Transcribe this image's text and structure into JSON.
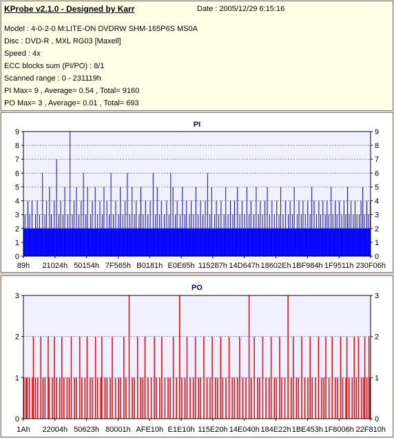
{
  "header": {
    "title": "KProbe v2.1.0 - Designed by Karr",
    "date": "Date : 2005/12/29 6:15:16",
    "lines": [
      "Model : 4-0-2-0 M:LITE-ON DVDRW SHM-165P6S MS0A",
      "Disc : DVD-R , MXL RG03 [Maxell]",
      "Speed : 4x",
      "ECC blocks sum (PI/PO) : 8/1",
      "Scanned range : 0 - 231119h",
      "PI Max= 9 , Average= 0.54 , Total= 9160",
      "PO Max= 3 , Average= 0.01 , Total= 693"
    ]
  },
  "colors": {
    "pi": "#0000ff",
    "po": "#ff0000",
    "plot_bg": "#f0f0ff",
    "grid": "#8080c0"
  },
  "chart_data": [
    {
      "type": "bar",
      "title": "PI",
      "ylim": [
        0,
        9
      ],
      "yticks": [
        "0",
        "1",
        "2",
        "3",
        "4",
        "5",
        "6",
        "7",
        "8",
        "9"
      ],
      "x_tick_labels": [
        "89h",
        "21024h",
        "50154h",
        "7F565h",
        "B0181h",
        "E0E65h",
        "115287h",
        "14D647h",
        "18602Eh",
        "1BF984h",
        "1F9511h",
        "230F06h"
      ],
      "grid": true,
      "series": [
        {
          "values": [
            2,
            2,
            3,
            2,
            2,
            2,
            2,
            4,
            2,
            2,
            3,
            2,
            2,
            2,
            4,
            2,
            2,
            2,
            2,
            2,
            3,
            2,
            2,
            4,
            2,
            2,
            2,
            3,
            2,
            2,
            2,
            2,
            6,
            2,
            2,
            2,
            3,
            2,
            2,
            4,
            2,
            2,
            2,
            2,
            5,
            2,
            2,
            3,
            2,
            2,
            2,
            2,
            4,
            2,
            2,
            2,
            7,
            2,
            2,
            2,
            3,
            2,
            2,
            4,
            2,
            2,
            2,
            3,
            2,
            2,
            5,
            2,
            2,
            2,
            2,
            3,
            2,
            2,
            2,
            9,
            2,
            2,
            2,
            3,
            2,
            2,
            4,
            2,
            2,
            2,
            5,
            2,
            2,
            2,
            3,
            2,
            2,
            2,
            4,
            2,
            2,
            2,
            6,
            2,
            2,
            2,
            3,
            2,
            2,
            5,
            2,
            2,
            2,
            2,
            3,
            2,
            2,
            4,
            2,
            2,
            2,
            2,
            5,
            2,
            2,
            2,
            3,
            2,
            2,
            2,
            4,
            2,
            2,
            2,
            3,
            2,
            2,
            5,
            2,
            2,
            2,
            2,
            4,
            2,
            2,
            2,
            3,
            2,
            2,
            6,
            2,
            2,
            2,
            3,
            2,
            2,
            2,
            4,
            2,
            2,
            2,
            2,
            3,
            2,
            2,
            5,
            2,
            2,
            2,
            3,
            2,
            2,
            2,
            4,
            2,
            2,
            2,
            6,
            2,
            2,
            2,
            3,
            2,
            2,
            2,
            5,
            2,
            2,
            2,
            3,
            2,
            2,
            4,
            2,
            2,
            2,
            2,
            3,
            2,
            2,
            5,
            2,
            2,
            2,
            3,
            2,
            2,
            2,
            4,
            2,
            2,
            2,
            3,
            2,
            2,
            2,
            4,
            2,
            2,
            2,
            2,
            6,
            2,
            2,
            2,
            3,
            2,
            2,
            5,
            2,
            2,
            2,
            3,
            2,
            2,
            4,
            2,
            2,
            2,
            2,
            3,
            2,
            2,
            2,
            4,
            2,
            2,
            2,
            3,
            2,
            2,
            6,
            2,
            2,
            2,
            5,
            2,
            2,
            2,
            3,
            2,
            2,
            4,
            2,
            2,
            2,
            2,
            3,
            2,
            2,
            2,
            5,
            2,
            2,
            2,
            3,
            2,
            2,
            4,
            2,
            2,
            2,
            2,
            3,
            2,
            2,
            4,
            2,
            2,
            2,
            3,
            2,
            2,
            2,
            5,
            2,
            2,
            2,
            3,
            2,
            2,
            2,
            4,
            2,
            2,
            2,
            3,
            2,
            2,
            2,
            4,
            2,
            2,
            2,
            6,
            2,
            2,
            2,
            3,
            2,
            2,
            5,
            2,
            2,
            2,
            2,
            3,
            2,
            2,
            4,
            2,
            2,
            2,
            3,
            2,
            2,
            2,
            4,
            2,
            2,
            2,
            2,
            3,
            2,
            2,
            5,
            2,
            2,
            2,
            3,
            2,
            2,
            2,
            4,
            2,
            2,
            2,
            3,
            2,
            2,
            4,
            2,
            2,
            2,
            2,
            5,
            2,
            2,
            2,
            3,
            2,
            2,
            2,
            4,
            2,
            2,
            2,
            3,
            2,
            2,
            2,
            5,
            2,
            2,
            2,
            3,
            2,
            2,
            4,
            2,
            2,
            2,
            2,
            3,
            2,
            2,
            2,
            5,
            2,
            2,
            2,
            3,
            2,
            2,
            4,
            2,
            2,
            2,
            3,
            2,
            2,
            2,
            4,
            2,
            2,
            2,
            5,
            2,
            2,
            2,
            3,
            2,
            2,
            2,
            4,
            2,
            2,
            2,
            3,
            2,
            2,
            2,
            4,
            2,
            2,
            2,
            3,
            2,
            2,
            5,
            2,
            2,
            2,
            3,
            2,
            2,
            2,
            4,
            2,
            2,
            2,
            2,
            3,
            2,
            2,
            4,
            2,
            2,
            2,
            3,
            2,
            2,
            5,
            2,
            2,
            2,
            2,
            3,
            2,
            2,
            4,
            2,
            2,
            2,
            3,
            2,
            2,
            4,
            2,
            2,
            2,
            3,
            2,
            2,
            2,
            4,
            2,
            2,
            2,
            3,
            2,
            2,
            5,
            2,
            2,
            2,
            4,
            2,
            2,
            2,
            3,
            2,
            2,
            2,
            4,
            2,
            2,
            3,
            2,
            2,
            2,
            4,
            2,
            2,
            2,
            3,
            2,
            2,
            4,
            2,
            2,
            3,
            2,
            2,
            2,
            5,
            2,
            2,
            3,
            2,
            2,
            2,
            4,
            2,
            2,
            3,
            2,
            2,
            2,
            4,
            2,
            2,
            2,
            3,
            2,
            2,
            2,
            4,
            2,
            2,
            3,
            2,
            2,
            5,
            2,
            2,
            3,
            2,
            2,
            4,
            2,
            2,
            2,
            3,
            2,
            2,
            4,
            2,
            2,
            3,
            2,
            2,
            2,
            3,
            2,
            2,
            4,
            2,
            2,
            5,
            2,
            2,
            3,
            2,
            2,
            2,
            4,
            2,
            2,
            3,
            2,
            2,
            4
          ]
        }
      ]
    },
    {
      "type": "bar",
      "title": "PO",
      "ylim": [
        0,
        3
      ],
      "yticks": [
        "0",
        "1",
        "2",
        "3"
      ],
      "x_tick_labels": [
        "1Ah",
        "22004h",
        "50623h",
        "80001h",
        "AFE10h",
        "E1E10h",
        "115E20h",
        "14E040h",
        "184E22h",
        "1BE453h",
        "1F8006h",
        "22F810h"
      ],
      "grid": true,
      "series": [
        {
          "values": [
            1,
            0,
            1,
            1,
            0,
            1,
            0,
            0,
            1,
            2,
            0,
            1,
            0,
            1,
            0,
            0,
            2,
            0,
            1,
            0,
            1,
            0,
            0,
            2,
            1,
            0,
            0,
            1,
            0,
            2,
            0,
            1,
            0,
            0,
            1,
            0,
            2,
            0,
            1,
            0,
            0,
            1,
            0,
            1,
            0,
            2,
            0,
            0,
            1,
            0,
            1,
            0,
            0,
            2,
            0,
            1,
            0,
            0,
            1,
            0,
            2,
            0,
            0,
            1,
            0,
            1,
            0,
            0,
            2,
            0,
            1,
            0,
            0,
            1,
            2,
            0,
            0,
            1,
            0,
            1,
            0,
            0,
            1,
            0,
            2,
            0,
            0,
            1,
            0,
            0,
            1,
            0,
            1,
            0,
            0,
            2,
            0,
            1,
            0,
            0,
            3,
            0,
            0,
            1,
            0,
            1,
            0,
            0,
            2,
            0,
            0,
            1,
            0,
            1,
            0,
            2,
            0,
            0,
            1,
            0,
            0,
            1,
            0,
            0,
            2,
            0,
            1,
            0,
            0,
            1,
            0,
            2,
            0,
            0,
            1,
            0,
            0,
            1,
            0,
            1,
            0,
            0,
            2,
            0,
            0,
            1,
            0,
            0,
            3,
            0,
            1,
            0,
            0,
            1,
            0,
            2,
            0,
            0,
            1,
            0,
            0,
            1,
            0,
            2,
            0,
            0,
            1,
            0,
            1,
            0,
            0,
            2,
            0,
            0,
            1,
            0,
            0,
            1,
            0,
            2,
            0,
            0,
            1,
            0,
            1,
            0,
            0,
            2,
            0,
            1,
            0,
            0,
            1,
            0,
            0,
            2,
            0,
            0,
            1,
            0,
            1,
            0,
            0,
            1,
            0,
            2,
            0,
            0,
            1,
            0,
            0,
            1,
            0,
            0,
            3,
            0,
            1,
            0,
            0,
            2,
            0,
            0,
            1,
            0,
            1,
            0,
            0,
            2,
            0,
            0,
            1,
            0,
            0,
            1,
            0,
            2,
            0,
            0,
            1,
            0,
            1,
            0,
            0,
            2,
            0,
            1,
            0,
            0,
            1,
            0,
            0,
            3,
            0,
            0,
            1,
            0,
            2,
            0,
            0,
            1,
            0,
            1,
            0,
            0,
            2,
            0,
            0,
            1,
            0,
            0,
            1,
            0,
            2,
            0,
            1,
            0,
            0,
            1,
            0,
            0,
            2,
            0,
            0,
            1,
            0,
            1,
            0,
            2,
            0,
            0,
            1,
            0,
            0,
            2,
            0,
            0,
            1,
            0,
            1,
            0,
            0,
            2,
            0,
            1,
            0,
            0,
            1,
            2,
            0,
            1,
            0,
            0,
            1,
            0,
            2,
            0,
            1,
            0,
            2,
            0,
            0,
            1,
            0,
            1,
            2,
            0,
            1,
            0,
            2,
            1
          ]
        }
      ]
    }
  ]
}
